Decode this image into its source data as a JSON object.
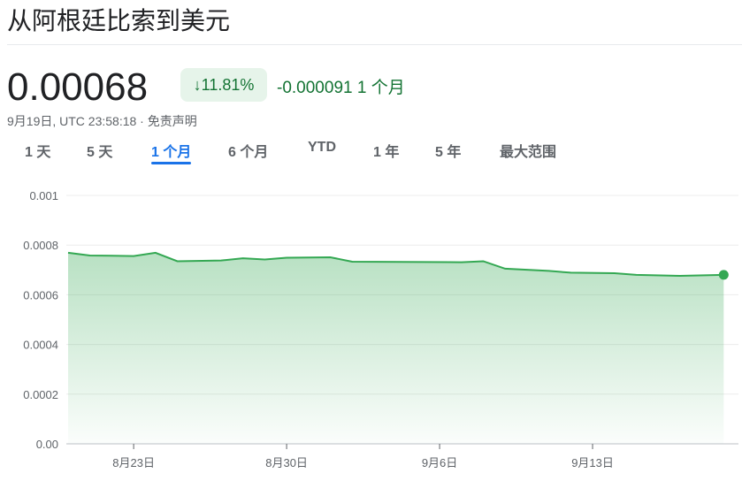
{
  "title": "从阿根廷比索到美元",
  "price": "0.00068",
  "change_pct": "11.81%",
  "change_direction": "down",
  "change_abs": "-0.000091",
  "change_period": "1 个月",
  "timestamp": "9月19日, UTC 23:58:18",
  "disclaimer": "免责声明",
  "tabs": [
    {
      "label": "1 天"
    },
    {
      "label": "5 天"
    },
    {
      "label": "1 个月",
      "active": true
    },
    {
      "label": "6 个月"
    },
    {
      "label": "YTD"
    },
    {
      "label": "1 年"
    },
    {
      "label": "5 年"
    },
    {
      "label": "最大范围"
    }
  ],
  "colors": {
    "line": "#34a853",
    "positive_text": "#137333",
    "accent": "#1a73e8"
  },
  "chart_data": {
    "type": "area",
    "ylim": [
      0,
      0.001
    ],
    "yticks": [
      "0.00",
      "0.0002",
      "0.0004",
      "0.0006",
      "0.0008",
      "0.001"
    ],
    "xticks": [
      "8月23日",
      "8月30日",
      "9月6日",
      "9月13日"
    ],
    "grid": true,
    "x": [
      "8/20",
      "8/21",
      "8/23",
      "8/24",
      "8/25",
      "8/27",
      "8/28",
      "8/29",
      "8/30",
      "9/1",
      "9/2",
      "9/7",
      "9/8",
      "9/9",
      "9/11",
      "9/12",
      "9/14",
      "9/15",
      "9/17",
      "9/19"
    ],
    "values": [
      0.000769,
      0.000758,
      0.000756,
      0.000769,
      0.000735,
      0.000738,
      0.000747,
      0.000742,
      0.000749,
      0.000751,
      0.000733,
      0.000731,
      0.000735,
      0.000705,
      0.000696,
      0.000689,
      0.000687,
      0.00068,
      0.000676,
      0.00068
    ]
  }
}
